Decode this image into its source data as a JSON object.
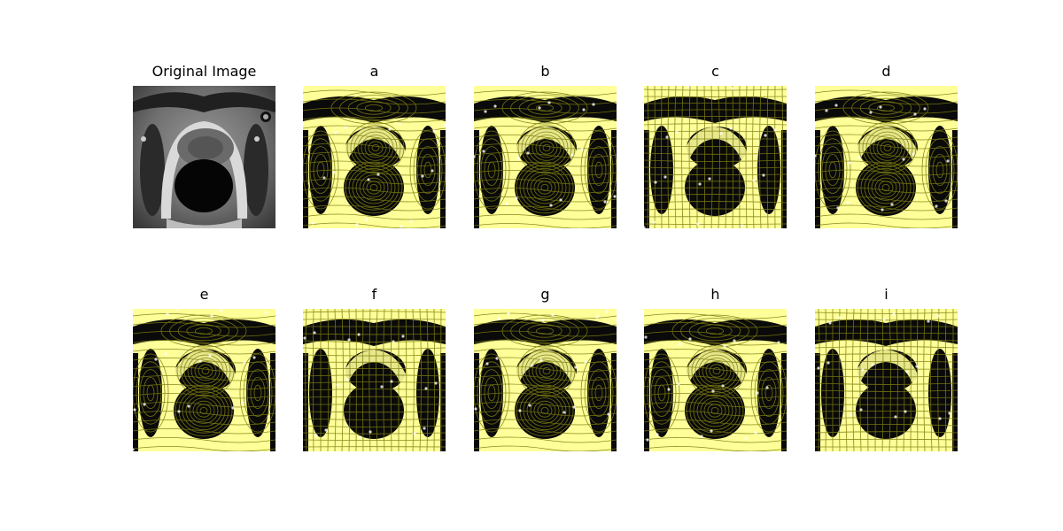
{
  "figure": {
    "panels": [
      {
        "id": "original",
        "title": "Original Image"
      },
      {
        "id": "a",
        "title": "a"
      },
      {
        "id": "b",
        "title": "b"
      },
      {
        "id": "c",
        "title": "c"
      },
      {
        "id": "d",
        "title": "d"
      },
      {
        "id": "e",
        "title": "e"
      },
      {
        "id": "f",
        "title": "f"
      },
      {
        "id": "g",
        "title": "g"
      },
      {
        "id": "h",
        "title": "h"
      },
      {
        "id": "i",
        "title": "i"
      }
    ]
  },
  "colors": {
    "background": "#ffffff",
    "mri_dark": "#0a0a0a",
    "mri_tissue": "#7a7a7a",
    "overlay_yellow": "#ffff99",
    "grid_line": "#7d7d10",
    "title": "#000000"
  }
}
